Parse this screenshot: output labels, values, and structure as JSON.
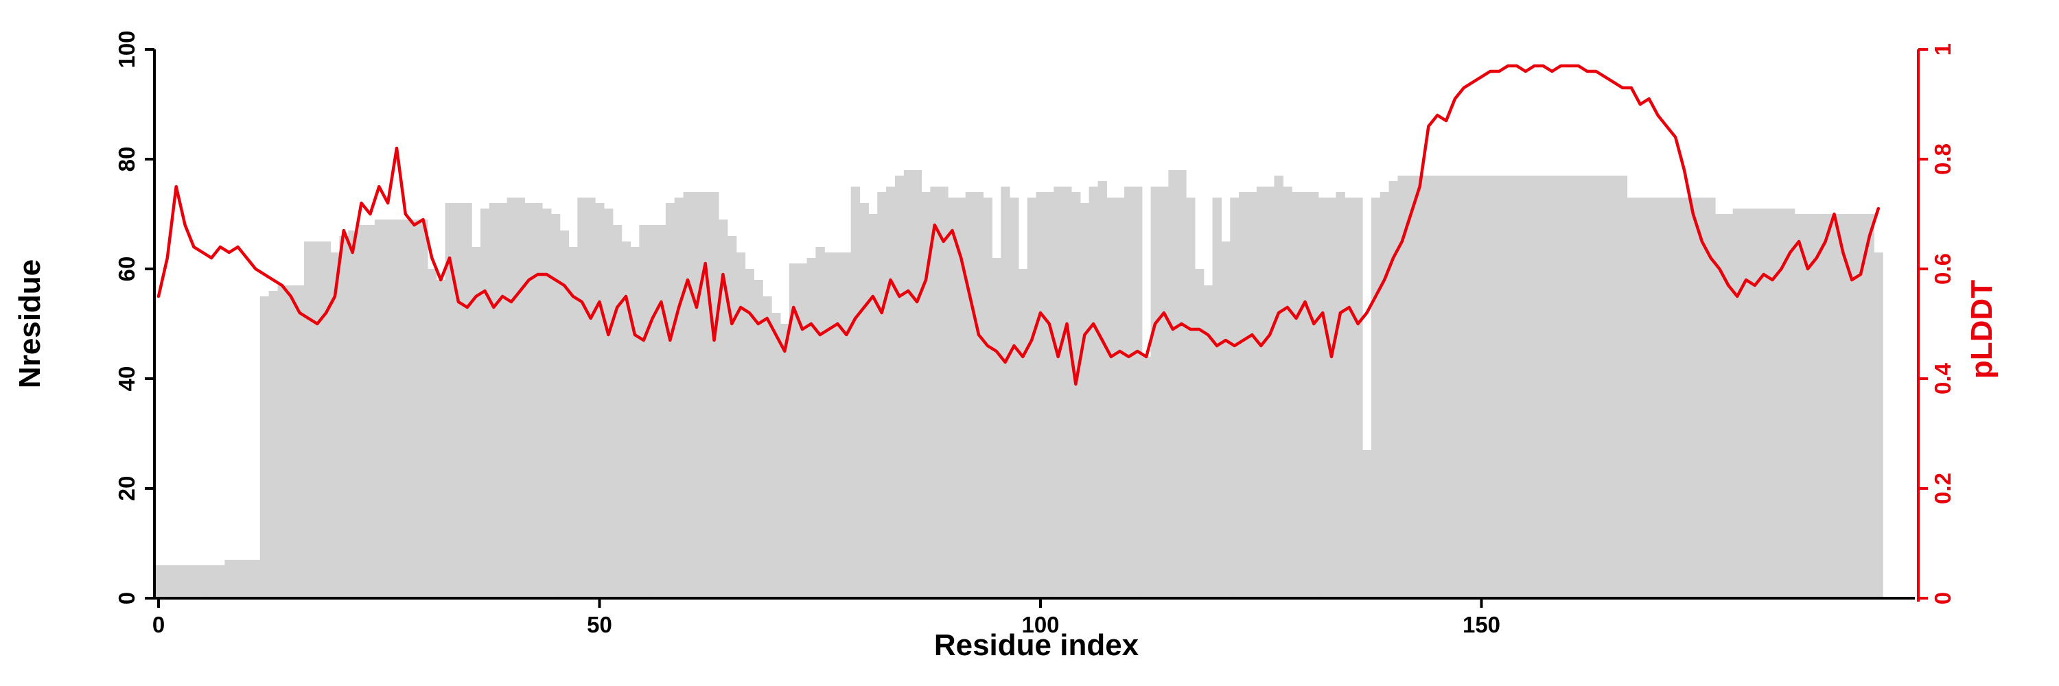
{
  "chart_data": {
    "type": "bar",
    "subtype": "bar-plus-line-dual-axis",
    "title": "",
    "xlabel": "Residue index",
    "ylabel_left": "Nresidue",
    "ylabel_right": "pLDDT",
    "x_ticks": [
      0,
      50,
      100,
      150
    ],
    "y_left_ticks": [
      0,
      20,
      40,
      60,
      80,
      100
    ],
    "y_right_ticks": [
      0,
      0.2,
      0.4,
      0.6,
      0.8,
      1
    ],
    "xlim": [
      -1,
      199
    ],
    "ylim_left": [
      0,
      100
    ],
    "ylim_right": [
      0,
      1
    ],
    "grid": false,
    "legend": "none",
    "bar_color": "#d3d3d3",
    "line_color": "#e8000b",
    "axis_color": "#000000",
    "x_start": 0,
    "series": [
      {
        "name": "Nresidue",
        "type": "bar",
        "axis": "left",
        "values": [
          6,
          6,
          6,
          6,
          6,
          6,
          6,
          6,
          7,
          7,
          7,
          7,
          55,
          56,
          57,
          57,
          57,
          65,
          65,
          65,
          63,
          66,
          67,
          68,
          68,
          69,
          69,
          69,
          69,
          69,
          69,
          60,
          58,
          72,
          72,
          72,
          64,
          71,
          72,
          72,
          73,
          73,
          72,
          72,
          71,
          70,
          67,
          64,
          73,
          73,
          72,
          71,
          68,
          65,
          64,
          68,
          68,
          68,
          72,
          73,
          74,
          74,
          74,
          74,
          69,
          66,
          63,
          60,
          58,
          55,
          52,
          50,
          61,
          61,
          62,
          64,
          63,
          63,
          63,
          75,
          72,
          70,
          74,
          75,
          77,
          78,
          78,
          74,
          75,
          75,
          73,
          73,
          74,
          74,
          73,
          62,
          75,
          73,
          60,
          73,
          74,
          74,
          75,
          75,
          74,
          72,
          75,
          76,
          73,
          73,
          75,
          75,
          44,
          75,
          75,
          78,
          78,
          73,
          60,
          57,
          73,
          65,
          73,
          74,
          74,
          75,
          75,
          77,
          75,
          74,
          74,
          74,
          73,
          73,
          74,
          73,
          73,
          27,
          73,
          74,
          76,
          77,
          77,
          77,
          77,
          77,
          77,
          77,
          77,
          77,
          77,
          77,
          77,
          77,
          77,
          77,
          77,
          77,
          77,
          77,
          77,
          77,
          77,
          77,
          77,
          77,
          77,
          73,
          73,
          73,
          73,
          73,
          73,
          73,
          73,
          73,
          73,
          70,
          70,
          71,
          71,
          71,
          71,
          71,
          71,
          71,
          70,
          70,
          70,
          70,
          70,
          70,
          70,
          70,
          70,
          63
        ]
      },
      {
        "name": "pLDDT",
        "type": "line",
        "axis": "right",
        "values": [
          0.55,
          0.62,
          0.75,
          0.68,
          0.64,
          0.63,
          0.62,
          0.64,
          0.63,
          0.64,
          0.62,
          0.6,
          0.59,
          0.58,
          0.57,
          0.55,
          0.52,
          0.51,
          0.5,
          0.52,
          0.55,
          0.67,
          0.63,
          0.72,
          0.7,
          0.75,
          0.72,
          0.82,
          0.7,
          0.68,
          0.69,
          0.62,
          0.58,
          0.62,
          0.54,
          0.53,
          0.55,
          0.56,
          0.53,
          0.55,
          0.54,
          0.56,
          0.58,
          0.59,
          0.59,
          0.58,
          0.57,
          0.55,
          0.54,
          0.51,
          0.54,
          0.48,
          0.53,
          0.55,
          0.48,
          0.47,
          0.51,
          0.54,
          0.47,
          0.53,
          0.58,
          0.53,
          0.61,
          0.47,
          0.59,
          0.5,
          0.53,
          0.52,
          0.5,
          0.51,
          0.48,
          0.45,
          0.53,
          0.49,
          0.5,
          0.48,
          0.49,
          0.5,
          0.48,
          0.51,
          0.53,
          0.55,
          0.52,
          0.58,
          0.55,
          0.56,
          0.54,
          0.58,
          0.68,
          0.65,
          0.67,
          0.62,
          0.55,
          0.48,
          0.46,
          0.45,
          0.43,
          0.46,
          0.44,
          0.47,
          0.52,
          0.5,
          0.44,
          0.5,
          0.39,
          0.48,
          0.5,
          0.47,
          0.44,
          0.45,
          0.44,
          0.45,
          0.44,
          0.5,
          0.52,
          0.49,
          0.5,
          0.49,
          0.49,
          0.48,
          0.46,
          0.47,
          0.46,
          0.47,
          0.48,
          0.46,
          0.48,
          0.52,
          0.53,
          0.51,
          0.54,
          0.5,
          0.52,
          0.44,
          0.52,
          0.53,
          0.5,
          0.52,
          0.55,
          0.58,
          0.62,
          0.65,
          0.7,
          0.75,
          0.86,
          0.88,
          0.87,
          0.91,
          0.93,
          0.94,
          0.95,
          0.96,
          0.96,
          0.97,
          0.97,
          0.96,
          0.97,
          0.97,
          0.96,
          0.97,
          0.97,
          0.97,
          0.96,
          0.96,
          0.95,
          0.94,
          0.93,
          0.93,
          0.9,
          0.91,
          0.88,
          0.86,
          0.84,
          0.78,
          0.7,
          0.65,
          0.62,
          0.6,
          0.57,
          0.55,
          0.58,
          0.57,
          0.59,
          0.58,
          0.6,
          0.63,
          0.65,
          0.6,
          0.62,
          0.65,
          0.7,
          0.63,
          0.58,
          0.59,
          0.66,
          0.71
        ]
      }
    ]
  }
}
